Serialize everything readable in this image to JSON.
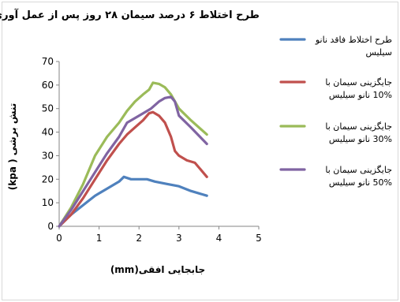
{
  "chart_data": {
    "type": "line",
    "title": "طرح اختلاط ۶ درصد سیمان ۲۸ روز پس از عمل آوری",
    "xlabel": "جابجایی افقی(mm)",
    "ylabel": "تنش برشی ( kpa)",
    "xlim": [
      0,
      5
    ],
    "ylim": [
      0,
      70
    ],
    "xticks": [
      "0",
      "1",
      "2",
      "3",
      "4",
      "5"
    ],
    "yticks": [
      "0",
      "10",
      "20",
      "30",
      "40",
      "50",
      "60",
      "70"
    ],
    "grid": false,
    "legend_position": "right",
    "series": [
      {
        "name": "طرح اختلاط فاقد نانو سیلیس",
        "color": "#4f81bd",
        "x": [
          0,
          0.3,
          0.6,
          0.9,
          1.2,
          1.5,
          1.62,
          1.8,
          2.0,
          2.2,
          2.4,
          2.7,
          3.0,
          3.3,
          3.7
        ],
        "y": [
          0,
          5,
          9,
          13,
          16,
          19,
          21,
          20,
          20,
          20,
          19,
          18,
          17,
          15,
          13
        ]
      },
      {
        "name": "جایگزینی سیمان با 10% نانو سیلیس",
        "color": "#c0504d",
        "x": [
          0,
          0.3,
          0.6,
          0.9,
          1.2,
          1.5,
          1.7,
          1.9,
          2.1,
          2.25,
          2.35,
          2.5,
          2.65,
          2.8,
          2.9,
          3.0,
          3.2,
          3.4,
          3.7
        ],
        "y": [
          0,
          5,
          12,
          20,
          28,
          35,
          39,
          42,
          45,
          48,
          48.5,
          47,
          44,
          38,
          32,
          30,
          28,
          27,
          21
        ]
      },
      {
        "name": "جایگزینی سیمان با 30% نانو سیلیس",
        "color": "#9bbb59",
        "x": [
          0,
          0.3,
          0.6,
          0.9,
          1.2,
          1.5,
          1.7,
          1.9,
          2.1,
          2.25,
          2.35,
          2.5,
          2.65,
          2.8,
          3.0,
          3.3,
          3.7
        ],
        "y": [
          0,
          8,
          18,
          30,
          38,
          44,
          49,
          53,
          56,
          58,
          61,
          60.5,
          59,
          56,
          50,
          45,
          39
        ]
      },
      {
        "name": "جایگزینی سیمان با 50% نانو سیلیس",
        "color": "#8064a2",
        "x": [
          0,
          0.3,
          0.6,
          0.9,
          1.2,
          1.5,
          1.7,
          1.9,
          2.1,
          2.3,
          2.5,
          2.65,
          2.8,
          2.9,
          3.0,
          3.3,
          3.7
        ],
        "y": [
          0,
          7,
          15,
          23,
          31,
          38,
          44,
          46,
          48,
          50,
          53,
          54.5,
          55,
          53,
          47,
          42,
          35
        ]
      }
    ]
  }
}
